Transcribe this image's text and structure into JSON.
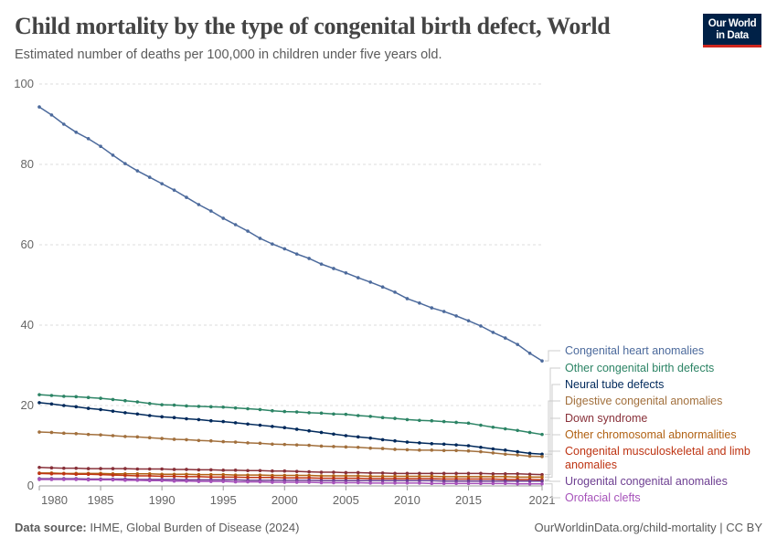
{
  "header": {
    "title": "Child mortality by the type of congenital birth defect, World",
    "subtitle": "Estimated number of deaths per 100,000 in children under five years old.",
    "logo_line1": "Our World",
    "logo_line2": "in Data"
  },
  "footer": {
    "source_label": "Data source:",
    "source": "IHME, Global Burden of Disease (2024)",
    "right": "OurWorldinData.org/child-mortality | CC BY"
  },
  "chart_data": {
    "type": "line",
    "title": "Child mortality by the type of congenital birth defect, World",
    "xlim": [
      1980,
      2021
    ],
    "ylim": [
      0,
      100
    ],
    "x_ticks": [
      1980,
      1985,
      1990,
      1995,
      2000,
      2005,
      2010,
      2015,
      2021
    ],
    "y_ticks": [
      0,
      20,
      40,
      60,
      80,
      100
    ],
    "grid": "horizontal dashed",
    "legend": "right, end-of-line labels",
    "x": [
      1980,
      1981,
      1982,
      1983,
      1984,
      1985,
      1986,
      1987,
      1988,
      1989,
      1990,
      1991,
      1992,
      1993,
      1994,
      1995,
      1996,
      1997,
      1998,
      1999,
      2000,
      2001,
      2002,
      2003,
      2004,
      2005,
      2006,
      2007,
      2008,
      2009,
      2010,
      2011,
      2012,
      2013,
      2014,
      2015,
      2016,
      2017,
      2018,
      2019,
      2020,
      2021
    ],
    "series": [
      {
        "name": "Congenital heart anomalies",
        "color": "#4c6a9c",
        "values": [
          94.3,
          92.3,
          90,
          88,
          86.4,
          84.5,
          82.3,
          80.2,
          78.4,
          76.8,
          75.2,
          73.6,
          71.8,
          70,
          68.4,
          66.6,
          65,
          63.4,
          61.6,
          60.2,
          59,
          57.7,
          56.6,
          55.2,
          54.1,
          53,
          51.8,
          50.7,
          49.5,
          48.2,
          46.6,
          45.5,
          44.3,
          43.4,
          42.3,
          41.1,
          39.8,
          38.2,
          36.8,
          35.2,
          33,
          31.1
        ]
      },
      {
        "name": "Other congenital birth defects",
        "color": "#2c8465",
        "values": [
          22.7,
          22.5,
          22.3,
          22.2,
          22.0,
          21.8,
          21.5,
          21.2,
          20.9,
          20.5,
          20.2,
          20.1,
          19.9,
          19.8,
          19.7,
          19.6,
          19.4,
          19.2,
          19.0,
          18.7,
          18.5,
          18.4,
          18.2,
          18.1,
          17.9,
          17.8,
          17.5,
          17.3,
          17.0,
          16.8,
          16.5,
          16.3,
          16.2,
          16.0,
          15.8,
          15.6,
          15.1,
          14.6,
          14.2,
          13.8,
          13.3,
          12.8
        ]
      },
      {
        "name": "Neural tube defects",
        "color": "#00295b",
        "values": [
          20.7,
          20.4,
          20.0,
          19.7,
          19.3,
          19.0,
          18.6,
          18.2,
          17.9,
          17.5,
          17.2,
          17.0,
          16.7,
          16.5,
          16.2,
          16.0,
          15.7,
          15.4,
          15.1,
          14.8,
          14.5,
          14.1,
          13.7,
          13.3,
          12.9,
          12.5,
          12.2,
          11.9,
          11.5,
          11.2,
          10.9,
          10.7,
          10.5,
          10.4,
          10.2,
          10.0,
          9.6,
          9.2,
          8.9,
          8.5,
          8.1,
          7.9
        ]
      },
      {
        "name": "Digestive congenital anomalies",
        "color": "#a2703d",
        "values": [
          13.4,
          13.3,
          13.1,
          13.0,
          12.8,
          12.7,
          12.5,
          12.3,
          12.2,
          12.0,
          11.8,
          11.6,
          11.5,
          11.3,
          11.2,
          11.0,
          10.9,
          10.7,
          10.6,
          10.4,
          10.3,
          10.2,
          10.1,
          9.9,
          9.8,
          9.7,
          9.6,
          9.4,
          9.3,
          9.1,
          9.0,
          8.9,
          8.9,
          8.8,
          8.8,
          8.7,
          8.5,
          8.2,
          7.9,
          7.7,
          7.4,
          7.3
        ]
      },
      {
        "name": "Down syndrome",
        "color": "#883039",
        "values": [
          4.6,
          4.5,
          4.4,
          4.4,
          4.3,
          4.3,
          4.3,
          4.3,
          4.2,
          4.2,
          4.2,
          4.1,
          4.1,
          4.0,
          4.0,
          3.9,
          3.9,
          3.8,
          3.8,
          3.7,
          3.7,
          3.6,
          3.5,
          3.4,
          3.4,
          3.3,
          3.3,
          3.2,
          3.2,
          3.1,
          3.1,
          3.1,
          3.1,
          3.1,
          3.1,
          3.1,
          3.1,
          3.0,
          3.0,
          3.0,
          2.9,
          2.8
        ]
      },
      {
        "name": "Other chromosomal abnormalities",
        "color": "#b16214",
        "values": [
          3.2,
          3.2,
          3.1,
          3.1,
          3.1,
          3.1,
          3.0,
          3.0,
          3.0,
          3.0,
          2.9,
          2.9,
          2.9,
          2.8,
          2.8,
          2.8,
          2.7,
          2.7,
          2.7,
          2.6,
          2.6,
          2.6,
          2.6,
          2.5,
          2.5,
          2.5,
          2.5,
          2.4,
          2.4,
          2.4,
          2.4,
          2.4,
          2.4,
          2.3,
          2.3,
          2.3,
          2.3,
          2.3,
          2.3,
          2.2,
          2.2,
          2.2
        ]
      },
      {
        "name": "Congenital musculoskeletal and limb anomalies",
        "color": "#be3413",
        "values": [
          3.1,
          3.0,
          3.0,
          2.9,
          2.9,
          2.8,
          2.7,
          2.6,
          2.5,
          2.5,
          2.4,
          2.4,
          2.3,
          2.3,
          2.2,
          2.2,
          2.2,
          2.1,
          2.1,
          2.1,
          2.0,
          2.0,
          2.0,
          1.9,
          1.9,
          1.9,
          1.9,
          1.8,
          1.8,
          1.8,
          1.8,
          1.8,
          1.8,
          1.7,
          1.7,
          1.7,
          1.7,
          1.7,
          1.6,
          1.6,
          1.6,
          1.5
        ]
      },
      {
        "name": "Urogenital congenital anomalies",
        "color": "#6d3e91",
        "values": [
          1.8,
          1.8,
          1.8,
          1.8,
          1.7,
          1.7,
          1.7,
          1.7,
          1.6,
          1.6,
          1.6,
          1.6,
          1.5,
          1.5,
          1.5,
          1.5,
          1.5,
          1.4,
          1.4,
          1.4,
          1.4,
          1.4,
          1.4,
          1.3,
          1.3,
          1.3,
          1.3,
          1.3,
          1.3,
          1.3,
          1.3,
          1.3,
          1.3,
          1.2,
          1.2,
          1.2,
          1.2,
          1.2,
          1.2,
          1.2,
          1.2,
          1.2
        ]
      },
      {
        "name": "Orofacial clefts",
        "color": "#a652ba",
        "values": [
          1.6,
          1.6,
          1.6,
          1.6,
          1.5,
          1.5,
          1.5,
          1.4,
          1.4,
          1.3,
          1.3,
          1.2,
          1.2,
          1.1,
          1.1,
          1.1,
          1.0,
          1.0,
          1.0,
          0.9,
          0.9,
          0.9,
          0.9,
          0.8,
          0.8,
          0.8,
          0.8,
          0.7,
          0.7,
          0.7,
          0.7,
          0.7,
          0.6,
          0.6,
          0.6,
          0.6,
          0.6,
          0.6,
          0.6,
          0.5,
          0.5,
          0.5
        ]
      }
    ]
  }
}
